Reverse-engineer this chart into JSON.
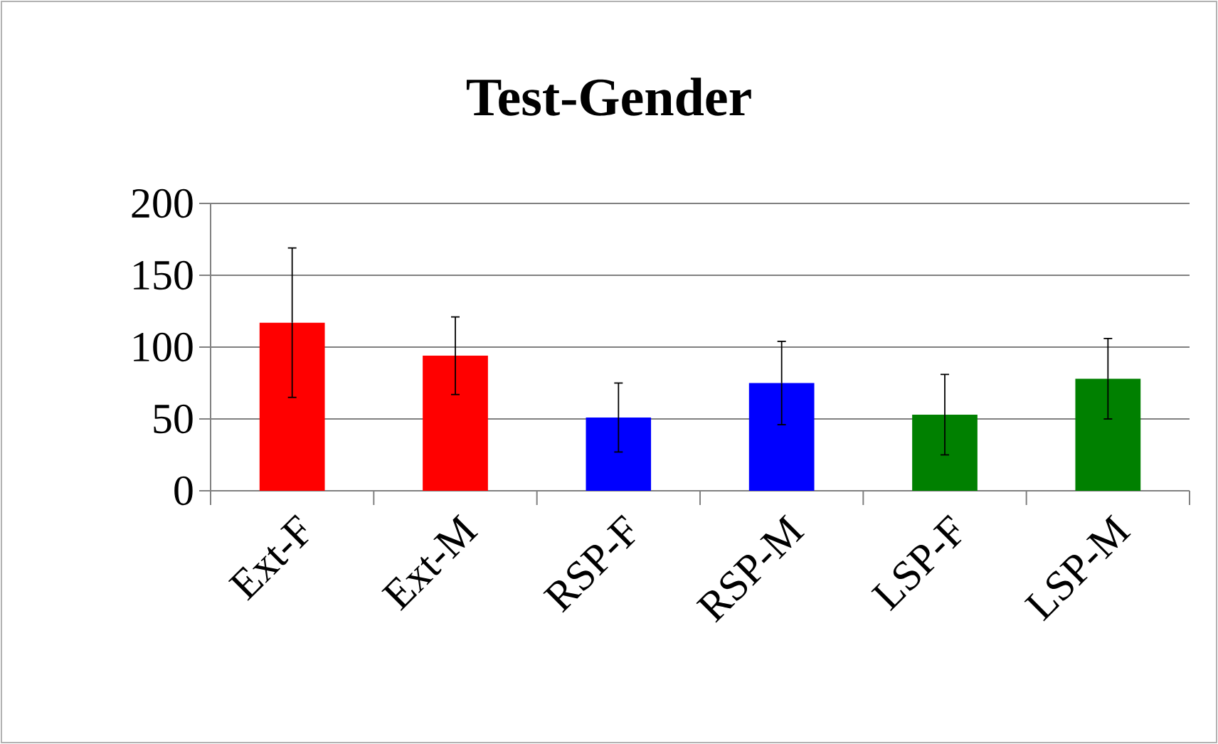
{
  "chart_data": {
    "type": "bar",
    "title": "Test-Gender",
    "categories": [
      "Ext-F",
      "Ext-M",
      "RSP-F",
      "RSP-M",
      "LSP-F",
      "LSP-M"
    ],
    "values": [
      117,
      94,
      51,
      75,
      53,
      78
    ],
    "errors": [
      52,
      27,
      24,
      29,
      28,
      28
    ],
    "colors": [
      "#ff0000",
      "#ff0000",
      "#0000ff",
      "#0000ff",
      "#008000",
      "#008000"
    ],
    "ylim": [
      0,
      200
    ],
    "yticks": [
      0,
      50,
      100,
      150,
      200
    ],
    "grid": "y"
  }
}
